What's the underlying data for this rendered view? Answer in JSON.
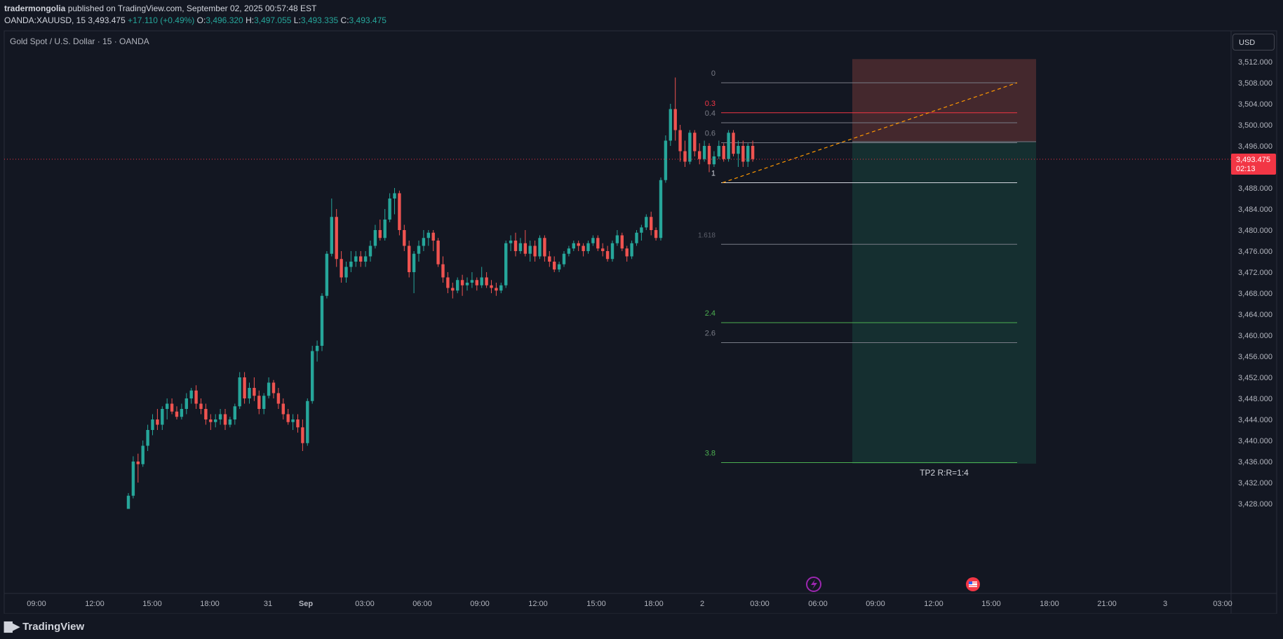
{
  "header": {
    "author": "tradermongolia",
    "published_text": "published on TradingView.com, September 02, 2025 00:57:48 EST",
    "symbol": "OANDA:XAUUSD, 15",
    "last": "3,493.475",
    "change": "+17.110 (+0.49%)",
    "o_label": "O:",
    "o_value": "3,496.320",
    "h_label": "H:",
    "h_value": "3,497.055",
    "l_label": "L:",
    "l_value": "3,493.335",
    "c_label": "C:",
    "c_value": "3,493.475"
  },
  "pane_title": "Gold Spot / U.S. Dollar · 15 · OANDA",
  "currency_button": "USD",
  "price_tag": {
    "price": "3,493.475",
    "countdown": "02:13"
  },
  "brand": "TradingView",
  "colors": {
    "up": "#26a69a",
    "down": "#ef5350",
    "background": "#131722",
    "stop_zone": "#4a2a2f",
    "target_zone": "#153032"
  },
  "chart_data": {
    "type": "candlestick",
    "ylim": [
      3427,
      3514
    ],
    "y_ticks": [
      "3,512.000",
      "3,508.000",
      "3,504.000",
      "3,500.000",
      "3,496.000",
      "3,492.000",
      "3,488.000",
      "3,484.000",
      "3,480.000",
      "3,476.000",
      "3,472.000",
      "3,468.000",
      "3,464.000",
      "3,460.000",
      "3,456.000",
      "3,452.000",
      "3,448.000",
      "3,444.000",
      "3,440.000",
      "3,436.000",
      "3,432.000",
      "3,428.000"
    ],
    "x_ticks": [
      "09:00",
      "12:00",
      "15:00",
      "18:00",
      "31",
      "Sep",
      "03:00",
      "06:00",
      "09:00",
      "12:00",
      "15:00",
      "18:00",
      "2",
      "03:00",
      "06:00",
      "09:00",
      "12:00",
      "15:00",
      "18:00",
      "21:00",
      "3",
      "03:00"
    ],
    "current_price": 3493.475,
    "candles": [
      [
        3427,
        3430,
        3427,
        3429.5
      ],
      [
        3429.5,
        3437,
        3429,
        3436
      ],
      [
        3436,
        3437.5,
        3432,
        3435.5
      ],
      [
        3435.5,
        3440,
        3435,
        3439
      ],
      [
        3439,
        3443,
        3438,
        3442
      ],
      [
        3442,
        3445,
        3441,
        3444
      ],
      [
        3444,
        3446,
        3442,
        3443
      ],
      [
        3443,
        3446.5,
        3442,
        3446
      ],
      [
        3446,
        3448,
        3444,
        3447
      ],
      [
        3447,
        3448,
        3445,
        3445.5
      ],
      [
        3445.5,
        3446.5,
        3444,
        3444.5
      ],
      [
        3444.5,
        3447,
        3444,
        3446
      ],
      [
        3446,
        3449,
        3445,
        3448
      ],
      [
        3448,
        3450,
        3447,
        3449.5
      ],
      [
        3449.5,
        3450.5,
        3446,
        3447
      ],
      [
        3447,
        3448,
        3445,
        3446
      ],
      [
        3446,
        3447,
        3443,
        3444
      ],
      [
        3444,
        3445,
        3442,
        3443.5
      ],
      [
        3443.5,
        3445,
        3442.5,
        3444
      ],
      [
        3444,
        3446,
        3443,
        3445
      ],
      [
        3445,
        3446,
        3442,
        3443
      ],
      [
        3443,
        3444.5,
        3442.5,
        3444
      ],
      [
        3444,
        3447,
        3443,
        3446.5
      ],
      [
        3446.5,
        3453,
        3446,
        3452
      ],
      [
        3452,
        3453,
        3447,
        3448
      ],
      [
        3448,
        3451,
        3447,
        3450
      ],
      [
        3450,
        3452,
        3447.5,
        3448.5
      ],
      [
        3448.5,
        3449.5,
        3445,
        3446
      ],
      [
        3446,
        3449,
        3445,
        3448.5
      ],
      [
        3448.5,
        3452,
        3448,
        3451
      ],
      [
        3451,
        3451.5,
        3448,
        3449
      ],
      [
        3449,
        3450,
        3446,
        3447
      ],
      [
        3447,
        3448,
        3444,
        3445
      ],
      [
        3445,
        3446,
        3443,
        3443.5
      ],
      [
        3443.5,
        3445,
        3442,
        3444
      ],
      [
        3444,
        3445,
        3441.5,
        3442.5
      ],
      [
        3442.5,
        3444,
        3438,
        3439.5
      ],
      [
        3439.5,
        3448,
        3439,
        3447.5
      ],
      [
        3447.5,
        3458,
        3447,
        3457
      ],
      [
        3457,
        3459,
        3455,
        3458
      ],
      [
        3458,
        3468,
        3457,
        3467.5
      ],
      [
        3467.5,
        3476,
        3467,
        3475.5
      ],
      [
        3475.5,
        3486,
        3475,
        3482.5
      ],
      [
        3482.5,
        3484,
        3473,
        3474.5
      ],
      [
        3474.5,
        3476,
        3470,
        3471
      ],
      [
        3471,
        3474,
        3470,
        3473
      ],
      [
        3473,
        3476,
        3472,
        3474
      ],
      [
        3474,
        3476,
        3473,
        3475
      ],
      [
        3475,
        3476,
        3473,
        3474
      ],
      [
        3474,
        3476,
        3473,
        3475
      ],
      [
        3475,
        3478,
        3474,
        3477
      ],
      [
        3477,
        3481,
        3476.5,
        3480
      ],
      [
        3480,
        3482,
        3478,
        3478.5
      ],
      [
        3478.5,
        3484,
        3478,
        3482
      ],
      [
        3482,
        3487,
        3481.5,
        3486
      ],
      [
        3486,
        3488,
        3483,
        3487
      ],
      [
        3487,
        3487.5,
        3479,
        3480
      ],
      [
        3480,
        3481,
        3476,
        3477
      ],
      [
        3477,
        3478,
        3471,
        3472
      ],
      [
        3472,
        3476,
        3468,
        3475.5
      ],
      [
        3475.5,
        3478,
        3474,
        3477
      ],
      [
        3477,
        3480,
        3476,
        3478.5
      ],
      [
        3478.5,
        3480,
        3477,
        3479.5
      ],
      [
        3479.5,
        3480,
        3476,
        3478
      ],
      [
        3478,
        3478.5,
        3473,
        3473.5
      ],
      [
        3473.5,
        3475,
        3470,
        3471
      ],
      [
        3471,
        3472,
        3468,
        3469
      ],
      [
        3469,
        3470,
        3467,
        3468.5
      ],
      [
        3468.5,
        3471,
        3468,
        3470.5
      ],
      [
        3470.5,
        3471.5,
        3467.5,
        3469.5
      ],
      [
        3469.5,
        3471,
        3468.5,
        3470
      ],
      [
        3470,
        3472,
        3469,
        3470.5
      ],
      [
        3470.5,
        3471,
        3468.5,
        3469.5
      ],
      [
        3469.5,
        3473,
        3469,
        3471
      ],
      [
        3471,
        3472,
        3469,
        3469.5
      ],
      [
        3469.5,
        3470.5,
        3468,
        3469
      ],
      [
        3469,
        3470,
        3467.5,
        3468.5
      ],
      [
        3468.5,
        3470,
        3468,
        3469.5
      ],
      [
        3469.5,
        3478,
        3469,
        3477.5
      ],
      [
        3477.5,
        3479,
        3476,
        3478
      ],
      [
        3478,
        3479.5,
        3475,
        3476
      ],
      [
        3476,
        3478.5,
        3475.5,
        3477.5
      ],
      [
        3477.5,
        3480,
        3475,
        3475.5
      ],
      [
        3475.5,
        3478,
        3474,
        3477
      ],
      [
        3477,
        3478,
        3474,
        3475
      ],
      [
        3475,
        3479,
        3474.5,
        3478.5
      ],
      [
        3478.5,
        3479,
        3474,
        3475
      ],
      [
        3475,
        3476,
        3473,
        3474
      ],
      [
        3474,
        3475,
        3472,
        3472.5
      ],
      [
        3472.5,
        3474,
        3472,
        3473.5
      ],
      [
        3473.5,
        3476,
        3473,
        3475.5
      ],
      [
        3475.5,
        3477,
        3475,
        3476.5
      ],
      [
        3476.5,
        3478,
        3476,
        3477.5
      ],
      [
        3477.5,
        3478,
        3476,
        3477
      ],
      [
        3477,
        3477.5,
        3475,
        3476
      ],
      [
        3476,
        3478,
        3475.5,
        3477.5
      ],
      [
        3477.5,
        3479,
        3477,
        3478.5
      ],
      [
        3478.5,
        3479,
        3476,
        3476.5
      ],
      [
        3476.5,
        3477.5,
        3475,
        3476
      ],
      [
        3476,
        3477,
        3474,
        3474.5
      ],
      [
        3474.5,
        3478,
        3474,
        3477.5
      ],
      [
        3477.5,
        3480,
        3477,
        3479
      ],
      [
        3479,
        3479.5,
        3476,
        3476.5
      ],
      [
        3476.5,
        3477,
        3474,
        3475
      ],
      [
        3475,
        3478,
        3474.5,
        3477.5
      ],
      [
        3477.5,
        3480,
        3477,
        3479.5
      ],
      [
        3479.5,
        3481,
        3478,
        3480.5
      ],
      [
        3480.5,
        3483,
        3480,
        3482.5
      ],
      [
        3482.5,
        3483.5,
        3479,
        3480
      ],
      [
        3480,
        3480.5,
        3478,
        3478.5
      ],
      [
        3478.5,
        3490,
        3478,
        3489.5
      ],
      [
        3489.5,
        3498,
        3489,
        3497
      ],
      [
        3497,
        3504,
        3496,
        3503
      ],
      [
        3503,
        3509,
        3497,
        3499
      ],
      [
        3499,
        3500,
        3493,
        3495
      ],
      [
        3495,
        3497,
        3492,
        3493
      ],
      [
        3493,
        3499,
        3492.5,
        3498.5
      ],
      [
        3498.5,
        3499,
        3494,
        3495
      ],
      [
        3495,
        3496.5,
        3492.5,
        3493.5
      ],
      [
        3493.5,
        3497,
        3493,
        3496
      ],
      [
        3496,
        3496.5,
        3491,
        3492.5
      ],
      [
        3492.5,
        3495,
        3492,
        3494
      ],
      [
        3494,
        3497,
        3493.5,
        3496
      ],
      [
        3496,
        3496.5,
        3493,
        3493.5
      ],
      [
        3493.5,
        3499,
        3493,
        3498.5
      ],
      [
        3498.5,
        3499,
        3494,
        3494.5
      ],
      [
        3494.5,
        3497,
        3492,
        3496
      ],
      [
        3496,
        3497,
        3492,
        3493
      ],
      [
        3493,
        3496.5,
        3492,
        3496
      ],
      [
        3496,
        3497,
        3493,
        3493.5
      ]
    ],
    "fib_levels": [
      {
        "label": "0",
        "price": 3508.0,
        "color": "#787b86"
      },
      {
        "label": "0.3",
        "price": 3502.3,
        "color": "#f23645"
      },
      {
        "label": "0.4",
        "price": 3500.4,
        "color": "#787b86"
      },
      {
        "label": "0.6",
        "price": 3496.6,
        "color": "#787b86"
      },
      {
        "label": "1",
        "price": 3489.0,
        "color": "#d1d4dc"
      },
      {
        "label": "2.4",
        "price": 3462.4,
        "color": "#4caf50"
      },
      {
        "label": "2.6",
        "price": 3458.6,
        "color": "#787b86"
      },
      {
        "label": "3.8",
        "price": 3435.8,
        "color": "#4caf50"
      }
    ],
    "partial_label": "1.618",
    "partial_price": 3477.3,
    "position": {
      "entry": 3496.8,
      "stop": 3512.5,
      "target": 3435.6,
      "label": "TP2 R:R=1:4"
    }
  }
}
